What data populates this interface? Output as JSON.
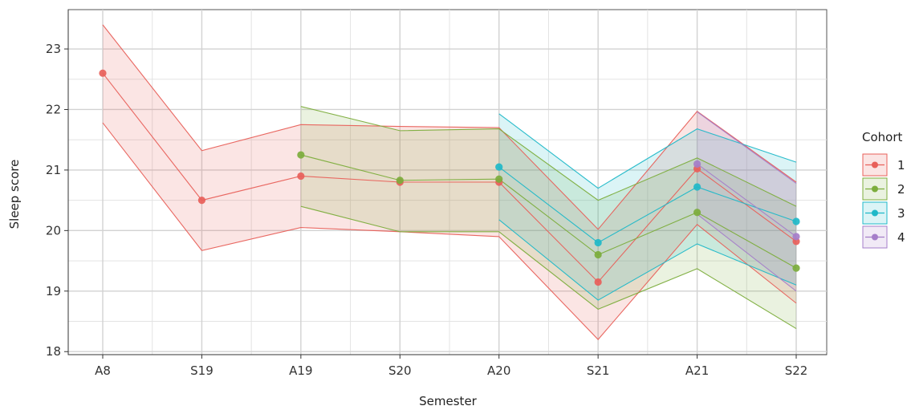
{
  "chart_data": {
    "type": "line",
    "xlabel": "Semester",
    "ylabel": "Sleep score",
    "categories": [
      "A8",
      "S19",
      "A19",
      "S20",
      "A20",
      "S21",
      "A21",
      "S22"
    ],
    "ylim": [
      17.95,
      23.65
    ],
    "yticks": [
      18,
      19,
      20,
      21,
      22,
      23
    ],
    "grid": true,
    "legend": {
      "title": "Cohort",
      "placement": "right"
    },
    "series": [
      {
        "name": "1",
        "color": "#e8605a",
        "values": [
          22.6,
          20.5,
          20.9,
          20.8,
          20.8,
          19.15,
          21.02,
          19.82
        ],
        "lower": [
          21.78,
          19.67,
          20.05,
          19.98,
          19.9,
          18.2,
          20.1,
          18.8
        ],
        "upper": [
          23.4,
          21.32,
          21.75,
          21.72,
          21.7,
          20.02,
          21.97,
          20.8
        ]
      },
      {
        "name": "2",
        "color": "#7cad3c",
        "values": [
          null,
          null,
          21.25,
          20.83,
          20.85,
          19.6,
          20.3,
          19.38
        ],
        "lower": [
          null,
          null,
          20.4,
          19.98,
          19.98,
          18.7,
          19.37,
          18.38
        ],
        "upper": [
          null,
          null,
          22.05,
          21.65,
          21.68,
          20.5,
          21.2,
          20.4
        ]
      },
      {
        "name": "3",
        "color": "#1fb8c8",
        "values": [
          null,
          null,
          null,
          null,
          21.05,
          19.8,
          20.72,
          20.15
        ],
        "lower": [
          null,
          null,
          null,
          null,
          20.18,
          18.85,
          19.78,
          19.1
        ],
        "upper": [
          null,
          null,
          null,
          null,
          21.93,
          20.7,
          21.68,
          21.13
        ]
      },
      {
        "name": "4",
        "color": "#a57ec9",
        "values": [
          null,
          null,
          null,
          null,
          null,
          null,
          21.1,
          19.9
        ],
        "lower": [
          null,
          null,
          null,
          null,
          null,
          null,
          20.27,
          19.0
        ],
        "upper": [
          null,
          null,
          null,
          null,
          null,
          null,
          21.96,
          20.78
        ]
      }
    ]
  }
}
